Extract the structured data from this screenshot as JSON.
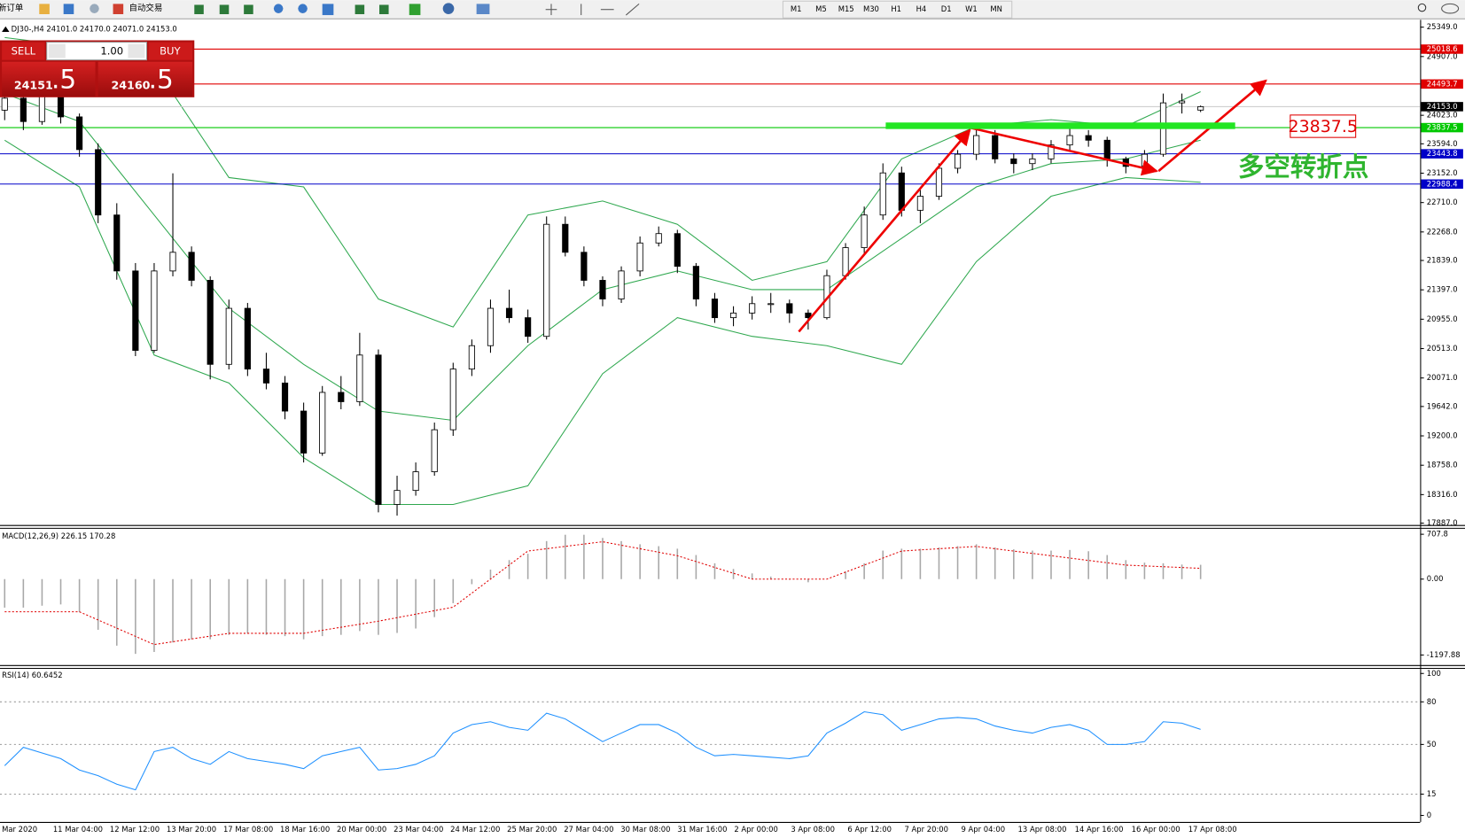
{
  "toolbar": {
    "new_order": "新订单",
    "auto_trading": "自动交易",
    "timeframes": [
      "M1",
      "M5",
      "M15",
      "M30",
      "H1",
      "H4",
      "D1",
      "W1",
      "MN"
    ]
  },
  "trade_panel": {
    "sell": "SELL",
    "buy": "BUY",
    "volume": "1.00",
    "bid_main": "24151",
    "bid_frac": ".5",
    "ask_main": "24160",
    "ask_frac": ".5"
  },
  "annotations": {
    "level_label": "23837.5",
    "turning_point": "多空转折点"
  },
  "chart_data": [
    {
      "type": "candlestick",
      "title": "DJ30-,H4  24101.0 24170.0 24071.0 24153.0",
      "up_color": "#ffffff",
      "down_color": "#000000",
      "candles": [
        [
          24100,
          24400,
          23950,
          24280
        ],
        [
          24280,
          24350,
          23800,
          23929
        ],
        [
          23929,
          24450,
          23880,
          24350
        ],
        [
          24350,
          24420,
          23900,
          23999
        ],
        [
          23999,
          24050,
          23400,
          23507
        ],
        [
          23507,
          23600,
          22400,
          22523
        ],
        [
          22523,
          22700,
          21550,
          21681
        ],
        [
          21681,
          21800,
          20400,
          20486
        ],
        [
          20486,
          21800,
          20450,
          21681
        ],
        [
          21681,
          23150,
          21600,
          21962
        ],
        [
          21962,
          22050,
          21450,
          21540
        ],
        [
          21540,
          21600,
          20050,
          20276
        ],
        [
          20276,
          21250,
          20200,
          21119
        ],
        [
          21119,
          21200,
          20100,
          20205
        ],
        [
          20205,
          20450,
          19900,
          19995
        ],
        [
          19995,
          20100,
          19450,
          19573
        ],
        [
          19573,
          19700,
          18800,
          18941
        ],
        [
          18941,
          19950,
          18900,
          19854
        ],
        [
          19854,
          20100,
          19600,
          19714
        ],
        [
          19714,
          20750,
          19650,
          20416
        ],
        [
          20416,
          20500,
          18050,
          18168
        ],
        [
          18168,
          18600,
          18000,
          18379
        ],
        [
          18379,
          18800,
          18300,
          18660
        ],
        [
          18660,
          19400,
          18600,
          19292
        ],
        [
          19292,
          20300,
          19200,
          20205
        ],
        [
          20205,
          20650,
          20100,
          20557
        ],
        [
          20557,
          21250,
          20450,
          21119
        ],
        [
          21119,
          21400,
          20900,
          20978
        ],
        [
          20978,
          21100,
          20600,
          20697
        ],
        [
          20697,
          22500,
          20650,
          22383
        ],
        [
          22383,
          22500,
          21900,
          21962
        ],
        [
          21962,
          22050,
          21450,
          21540
        ],
        [
          21540,
          21600,
          21150,
          21259
        ],
        [
          21259,
          21750,
          21200,
          21681
        ],
        [
          21681,
          22200,
          21600,
          22102
        ],
        [
          22102,
          22350,
          22050,
          22243
        ],
        [
          22243,
          22300,
          21650,
          21751
        ],
        [
          21751,
          21800,
          21150,
          21259
        ],
        [
          21259,
          21350,
          20900,
          20978
        ],
        [
          20978,
          21150,
          20850,
          21048
        ],
        [
          21048,
          21300,
          20950,
          21189
        ],
        [
          21189,
          21350,
          21050,
          21189
        ],
        [
          21189,
          21250,
          20900,
          21048
        ],
        [
          21048,
          21100,
          20800,
          20978
        ],
        [
          20978,
          21700,
          20950,
          21610
        ],
        [
          21610,
          22100,
          21550,
          22032
        ],
        [
          22032,
          22650,
          21950,
          22523
        ],
        [
          22523,
          23300,
          22450,
          23156
        ],
        [
          23156,
          23250,
          22500,
          22594
        ],
        [
          22594,
          22900,
          22400,
          22805
        ],
        [
          22805,
          23300,
          22750,
          23226
        ],
        [
          23226,
          23500,
          23150,
          23437
        ],
        [
          23437,
          23850,
          23350,
          23718
        ],
        [
          23718,
          23800,
          23300,
          23367
        ],
        [
          23367,
          23450,
          23150,
          23296
        ],
        [
          23296,
          23450,
          23200,
          23367
        ],
        [
          23367,
          23650,
          23300,
          23577
        ],
        [
          23577,
          23900,
          23500,
          23718
        ],
        [
          23718,
          23800,
          23550,
          23648
        ],
        [
          23648,
          23700,
          23250,
          23367
        ],
        [
          23367,
          23400,
          23150,
          23254
        ],
        [
          23254,
          23500,
          23150,
          23437
        ],
        [
          23437,
          24350,
          23400,
          24210
        ],
        [
          24210,
          24350,
          24050,
          24238
        ],
        [
          24101,
          24170,
          24071,
          24153
        ]
      ],
      "bands": {
        "x": [
          0,
          4,
          8,
          12,
          16,
          20,
          24,
          28,
          32,
          36,
          40,
          44,
          48,
          52,
          56,
          60,
          64
        ],
        "color": "#2fa84f",
        "series": [
          {
            "values": [
              25193,
              25053,
              24772,
              23086,
              22945,
              21259,
              20838,
              22523,
              22734,
              22383,
              21540,
              21821,
              23367,
              23858,
              23957,
              23858,
              24378
            ]
          },
          {
            "values": [
              24350,
              23929,
              22523,
              21119,
              20276,
              19573,
              19433,
              20557,
              21400,
              21681,
              21400,
              21400,
              22172,
              22945,
              23296,
              23367,
              23648
            ]
          },
          {
            "values": [
              23648,
              22945,
              20416,
              19995,
              18871,
              18168,
              18168,
              18449,
              20135,
              20978,
              20697,
              20557,
              20276,
              21821,
              22805,
              23086,
              23015
            ]
          }
        ]
      },
      "levels": [
        {
          "value": 25018.6,
          "color": "#e00000",
          "box": "#e00000"
        },
        {
          "value": 24493.7,
          "color": "#e00000",
          "box": "#e00000"
        },
        {
          "value": 24153,
          "label": "24153.0",
          "color": "#c8c8c8",
          "box": "#000000"
        },
        {
          "value": 23837.5,
          "color": "#00c800",
          "box": "#00c800"
        },
        {
          "value": 23443.8,
          "color": "#0000c8",
          "box": "#0000c8"
        },
        {
          "value": 22988.4,
          "color": "#0000c8",
          "box": "#0000c8"
        }
      ],
      "ylim": [
        17859,
        25446
      ],
      "yticks": [
        {
          "value": 25349,
          "label": "25349.0"
        },
        {
          "value": 24907,
          "label": "24907.0"
        },
        {
          "value": 24023,
          "label": "24023.0"
        },
        {
          "value": 23594,
          "label": "23594.0"
        },
        {
          "value": 23152,
          "label": "23152.0"
        },
        {
          "value": 22710,
          "label": "22710.0"
        },
        {
          "value": 22268,
          "label": "22268.0"
        },
        {
          "value": 21839,
          "label": "21839.0"
        },
        {
          "value": 21397,
          "label": "21397.0"
        },
        {
          "value": 20955,
          "label": "20955.0"
        },
        {
          "value": 20513,
          "label": "20513.0"
        },
        {
          "value": 20071,
          "label": "20071.0"
        },
        {
          "value": 19642,
          "label": "19642.0"
        },
        {
          "value": 19200,
          "label": "19200.0"
        },
        {
          "value": 18758,
          "label": "18758.0"
        },
        {
          "value": 18316,
          "label": "18316.0"
        },
        {
          "value": 17887,
          "label": "17887.0"
        }
      ],
      "xtick_labels": [
        "Mar 2020",
        "11 Mar 04:00",
        "12 Mar 12:00",
        "13 Mar 20:00",
        "17 Mar 08:00",
        "18 Mar 16:00",
        "20 Mar 00:00",
        "23 Mar 04:00",
        "24 Mar 12:00",
        "25 Mar 20:00",
        "27 Mar 04:00",
        "30 Mar 08:00",
        "31 Mar 16:00",
        "2 Apr 00:00",
        "3 Apr 08:00",
        "6 Apr 12:00",
        "7 Apr 20:00",
        "9 Apr 04:00",
        "13 Apr 08:00",
        "14 Apr 16:00",
        "16 Apr 00:00",
        "17 Apr 08:00"
      ]
    },
    {
      "type": "macd",
      "title": "MACD(12,26,9) 226.15 170.28",
      "color": "#a8a8a8",
      "values": [
        -450,
        -450,
        -420,
        -400,
        -520,
        -800,
        -1050,
        -1180,
        -1150,
        -1000,
        -950,
        -950,
        -880,
        -860,
        -880,
        -900,
        -950,
        -900,
        -880,
        -820,
        -880,
        -850,
        -780,
        -600,
        -380,
        -80,
        150,
        300,
        400,
        600,
        700,
        700,
        650,
        600,
        550,
        520,
        480,
        380,
        250,
        160,
        90,
        40,
        -10,
        -50,
        0,
        120,
        250,
        450,
        480,
        480,
        500,
        520,
        550,
        500,
        470,
        450,
        450,
        460,
        440,
        380,
        300,
        260,
        250,
        230,
        226.15
      ],
      "signal": {
        "color": "#e00000",
        "x": [
          0,
          4,
          8,
          12,
          16,
          20,
          24,
          28,
          32,
          36,
          40,
          44,
          48,
          52,
          56,
          60,
          64
        ],
        "values": [
          -516,
          -516,
          -1033,
          -856,
          -856,
          -664,
          -443,
          443,
          590,
          369,
          0,
          0,
          443,
          516,
          369,
          221,
          170.28
        ]
      },
      "ylim": [
        -1357,
        810
      ],
      "yticks": [
        {
          "value": 707.8,
          "label": "707.8"
        },
        {
          "value": 0,
          "label": "0.00"
        },
        {
          "value": -1197.88,
          "label": "-1197.88"
        }
      ]
    },
    {
      "type": "line",
      "title": "RSI(14) 60.6452",
      "color": "#1e90ff",
      "grid": true,
      "values": [
        35,
        48,
        44,
        40,
        32,
        28,
        22,
        18,
        45,
        48,
        40,
        36,
        45,
        40,
        38,
        36,
        33,
        42,
        45,
        48,
        32,
        33,
        36,
        42,
        58,
        64,
        66,
        62,
        60,
        72,
        68,
        60,
        52,
        58,
        64,
        64,
        58,
        48,
        42,
        43,
        42,
        41,
        40,
        42,
        58,
        65,
        73,
        71,
        60,
        64,
        68,
        69,
        68,
        63,
        60,
        58,
        62,
        64,
        60,
        50,
        50,
        52,
        66,
        65,
        60.6452
      ],
      "ylim": [
        0,
        100
      ],
      "yticks": [
        100,
        80,
        50,
        15,
        0
      ]
    }
  ]
}
